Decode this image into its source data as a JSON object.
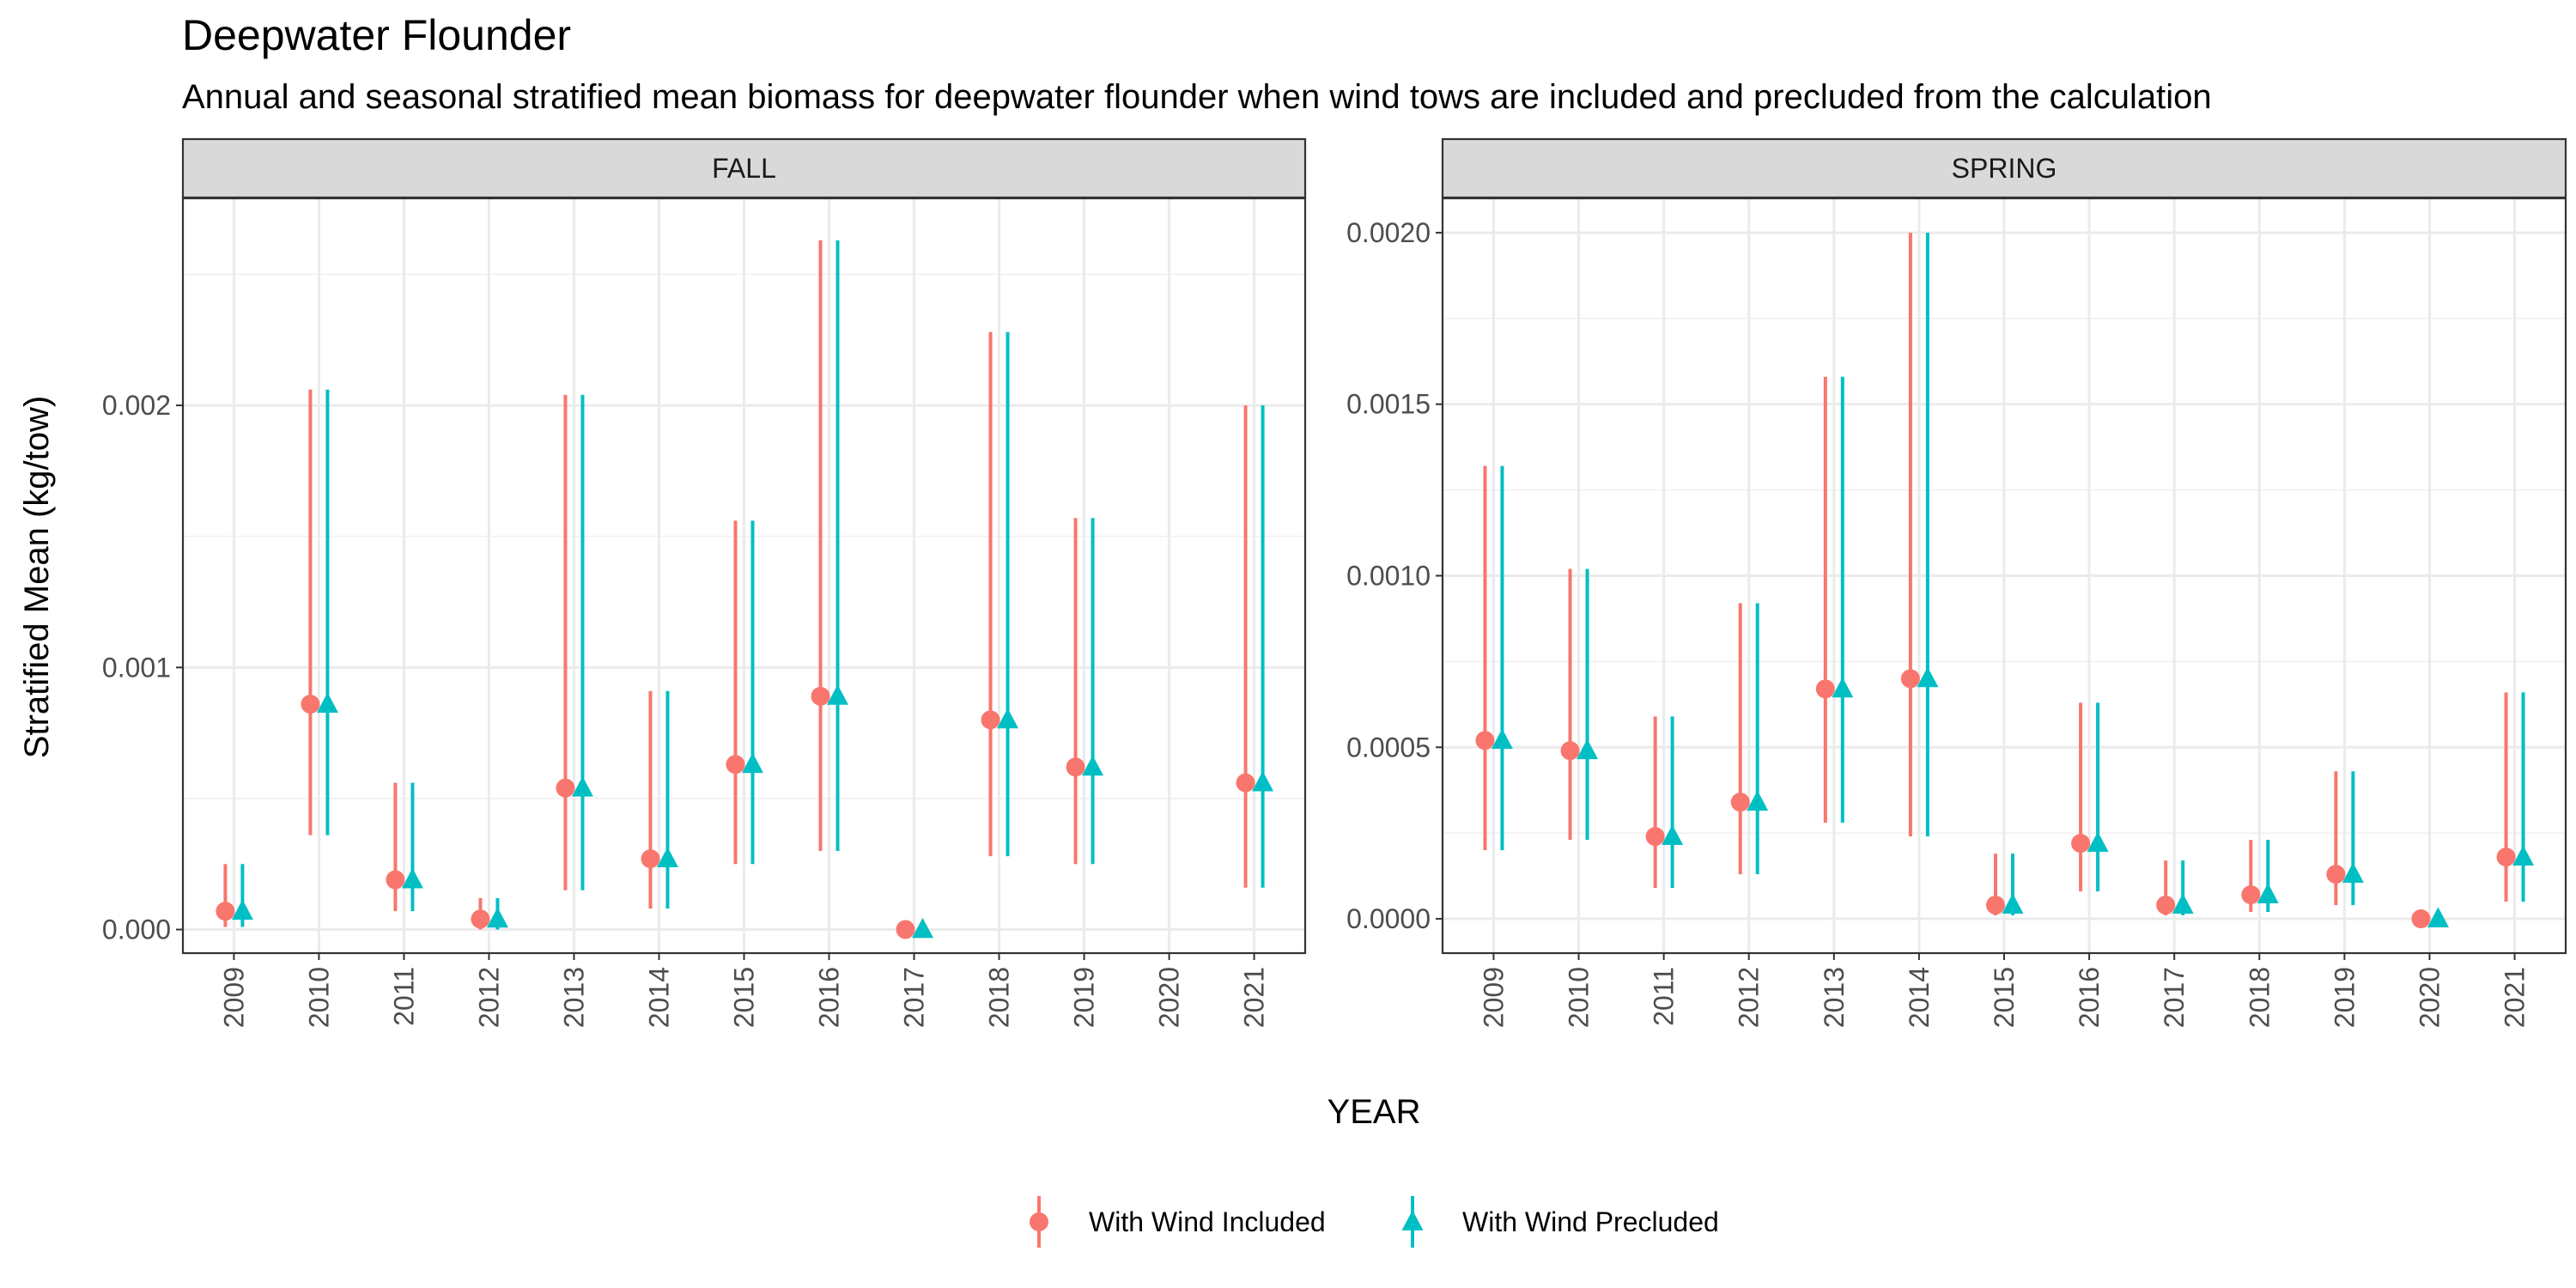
{
  "chart_data": {
    "type": "scatter",
    "title": "Deepwater Flounder",
    "subtitle": "Annual and seasonal stratified mean biomass for deepwater flounder when wind tows are included and precluded from the calculation",
    "xlabel": "YEAR",
    "ylabel": "Stratified Mean (kg/tow)",
    "grid": true,
    "legend_position": "bottom",
    "legend": [
      {
        "label": "With Wind Included",
        "color": "#F8766D",
        "shape": "circle"
      },
      {
        "label": "With Wind Precluded",
        "color": "#00BFC4",
        "shape": "triangle"
      }
    ],
    "facets": [
      {
        "label": "FALL",
        "x": [
          "2009",
          "2010",
          "2011",
          "2012",
          "2013",
          "2014",
          "2015",
          "2016",
          "2017",
          "2018",
          "2019",
          "2020",
          "2021"
        ],
        "ylim": [
          -9e-05,
          0.00279
        ],
        "yticks": [
          0,
          0.001,
          0.002
        ],
        "ytick_labels": [
          "0.000",
          "0.001",
          "0.002"
        ],
        "series": [
          {
            "name": "With Wind Included",
            "values": [
              7e-05,
              0.00086,
              0.00019,
              4e-05,
              0.00054,
              0.00027,
              0.00063,
              0.00089,
              0.0,
              0.0008,
              0.00062,
              null,
              0.00056
            ],
            "lower": [
              1e-05,
              0.00036,
              7e-05,
              0.0,
              0.00015,
              8e-05,
              0.00025,
              0.0003,
              0.0,
              0.00028,
              0.00025,
              null,
              0.00016
            ],
            "upper": [
              0.00025,
              0.00206,
              0.00056,
              0.00012,
              0.00204,
              0.00091,
              0.00156,
              0.00263,
              0.0,
              0.00228,
              0.00157,
              null,
              0.002
            ]
          },
          {
            "name": "With Wind Precluded",
            "values": [
              7e-05,
              0.00086,
              0.00019,
              4e-05,
              0.00054,
              0.00027,
              0.00063,
              0.00089,
              0.0,
              0.0008,
              0.00062,
              null,
              0.00056
            ],
            "lower": [
              1e-05,
              0.00036,
              7e-05,
              0.0,
              0.00015,
              8e-05,
              0.00025,
              0.0003,
              0.0,
              0.00028,
              0.00025,
              null,
              0.00016
            ],
            "upper": [
              0.00025,
              0.00206,
              0.00056,
              0.00012,
              0.00204,
              0.00091,
              0.00156,
              0.00263,
              0.0,
              0.00228,
              0.00157,
              null,
              0.002
            ]
          }
        ]
      },
      {
        "label": "SPRING",
        "x": [
          "2009",
          "2010",
          "2011",
          "2012",
          "2013",
          "2014",
          "2015",
          "2016",
          "2017",
          "2018",
          "2019",
          "2020",
          "2021"
        ],
        "ylim": [
          -0.0001,
          0.0021
        ],
        "yticks": [
          0,
          0.0005,
          0.001,
          0.0015,
          0.002
        ],
        "ytick_labels": [
          "0.0000",
          "0.0005",
          "0.0010",
          "0.0015",
          "0.0020"
        ],
        "series": [
          {
            "name": "With Wind Included",
            "values": [
              0.00052,
              0.00049,
              0.00024,
              0.00034,
              0.00067,
              0.0007,
              4e-05,
              0.00022,
              4e-05,
              7e-05,
              0.00013,
              0.0,
              0.00018
            ],
            "lower": [
              0.0002,
              0.00023,
              9e-05,
              0.00013,
              0.00028,
              0.00024,
              1e-05,
              8e-05,
              1e-05,
              2e-05,
              4e-05,
              0.0,
              5e-05
            ],
            "upper": [
              0.00132,
              0.00102,
              0.00059,
              0.00092,
              0.00158,
              0.002,
              0.00019,
              0.00063,
              0.00017,
              0.00023,
              0.00043,
              0.0,
              0.00066
            ]
          },
          {
            "name": "With Wind Precluded",
            "values": [
              0.00052,
              0.00049,
              0.00024,
              0.00034,
              0.00067,
              0.0007,
              4e-05,
              0.00022,
              4e-05,
              7e-05,
              0.00013,
              0.0,
              0.00018
            ],
            "lower": [
              0.0002,
              0.00023,
              9e-05,
              0.00013,
              0.00028,
              0.00024,
              1e-05,
              8e-05,
              1e-05,
              2e-05,
              4e-05,
              0.0,
              5e-05
            ],
            "upper": [
              0.00132,
              0.00102,
              0.00059,
              0.00092,
              0.00158,
              0.002,
              0.00019,
              0.00063,
              0.00017,
              0.00023,
              0.00043,
              0.0,
              0.00066
            ]
          }
        ]
      }
    ]
  }
}
